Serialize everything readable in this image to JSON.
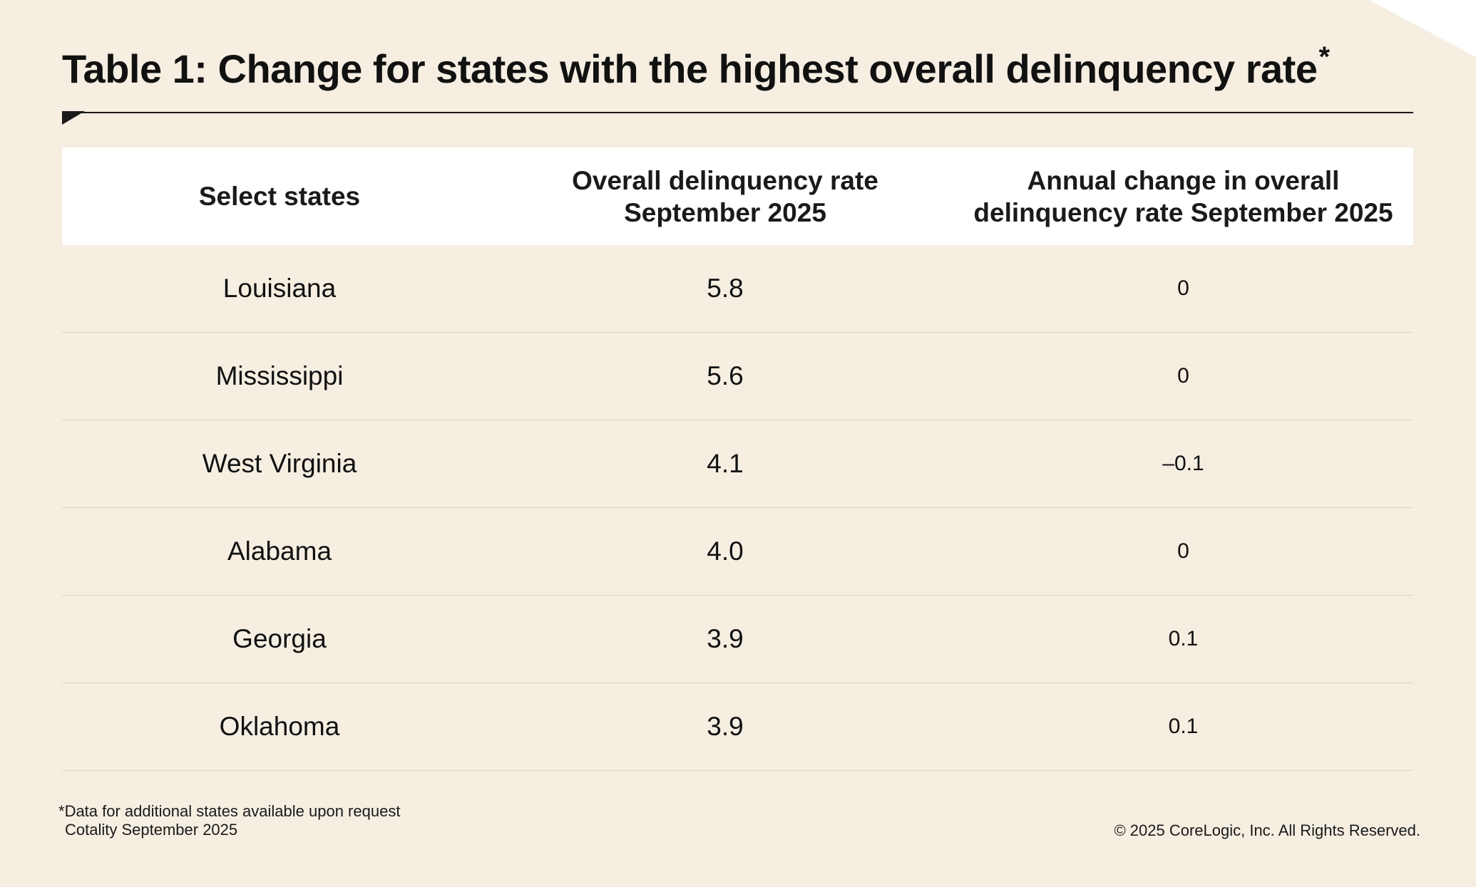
{
  "title": "Table 1: Change for states with the highest overall delinquency rate",
  "title_marker": "*",
  "chart_data": {
    "type": "table",
    "columns": [
      "Select states",
      "Overall delinquency rate September 2025",
      "Annual change in overall delinquency rate September 2025"
    ],
    "header_lines": [
      [
        "Select states"
      ],
      [
        "Overall delinquency rate",
        "September 2025"
      ],
      [
        "Annual change in overall",
        "delinquency rate September 2025"
      ]
    ],
    "rows": [
      {
        "state": "Louisiana",
        "rate": "5.8",
        "change": "0"
      },
      {
        "state": "Mississippi",
        "rate": "5.6",
        "change": "0"
      },
      {
        "state": "West Virginia",
        "rate": "4.1",
        "change": "–0.1"
      },
      {
        "state": "Alabama",
        "rate": "4.0",
        "change": "0"
      },
      {
        "state": "Georgia",
        "rate": "3.9",
        "change": "0.1"
      },
      {
        "state": "Oklahoma",
        "rate": "3.9",
        "change": "0.1"
      }
    ]
  },
  "footnote": {
    "marker": "*",
    "note": "Data for additional states available upon request",
    "source": "Cotality September 2025"
  },
  "copyright": "© 2025 CoreLogic, Inc. All Rights Reserved.",
  "colors": {
    "background": "#f5eee1",
    "header_background": "#ffffff",
    "text": "#111111",
    "rule": "#1a1a1a",
    "row_divider": "#ddd4c3",
    "corner": "#ffffff"
  }
}
